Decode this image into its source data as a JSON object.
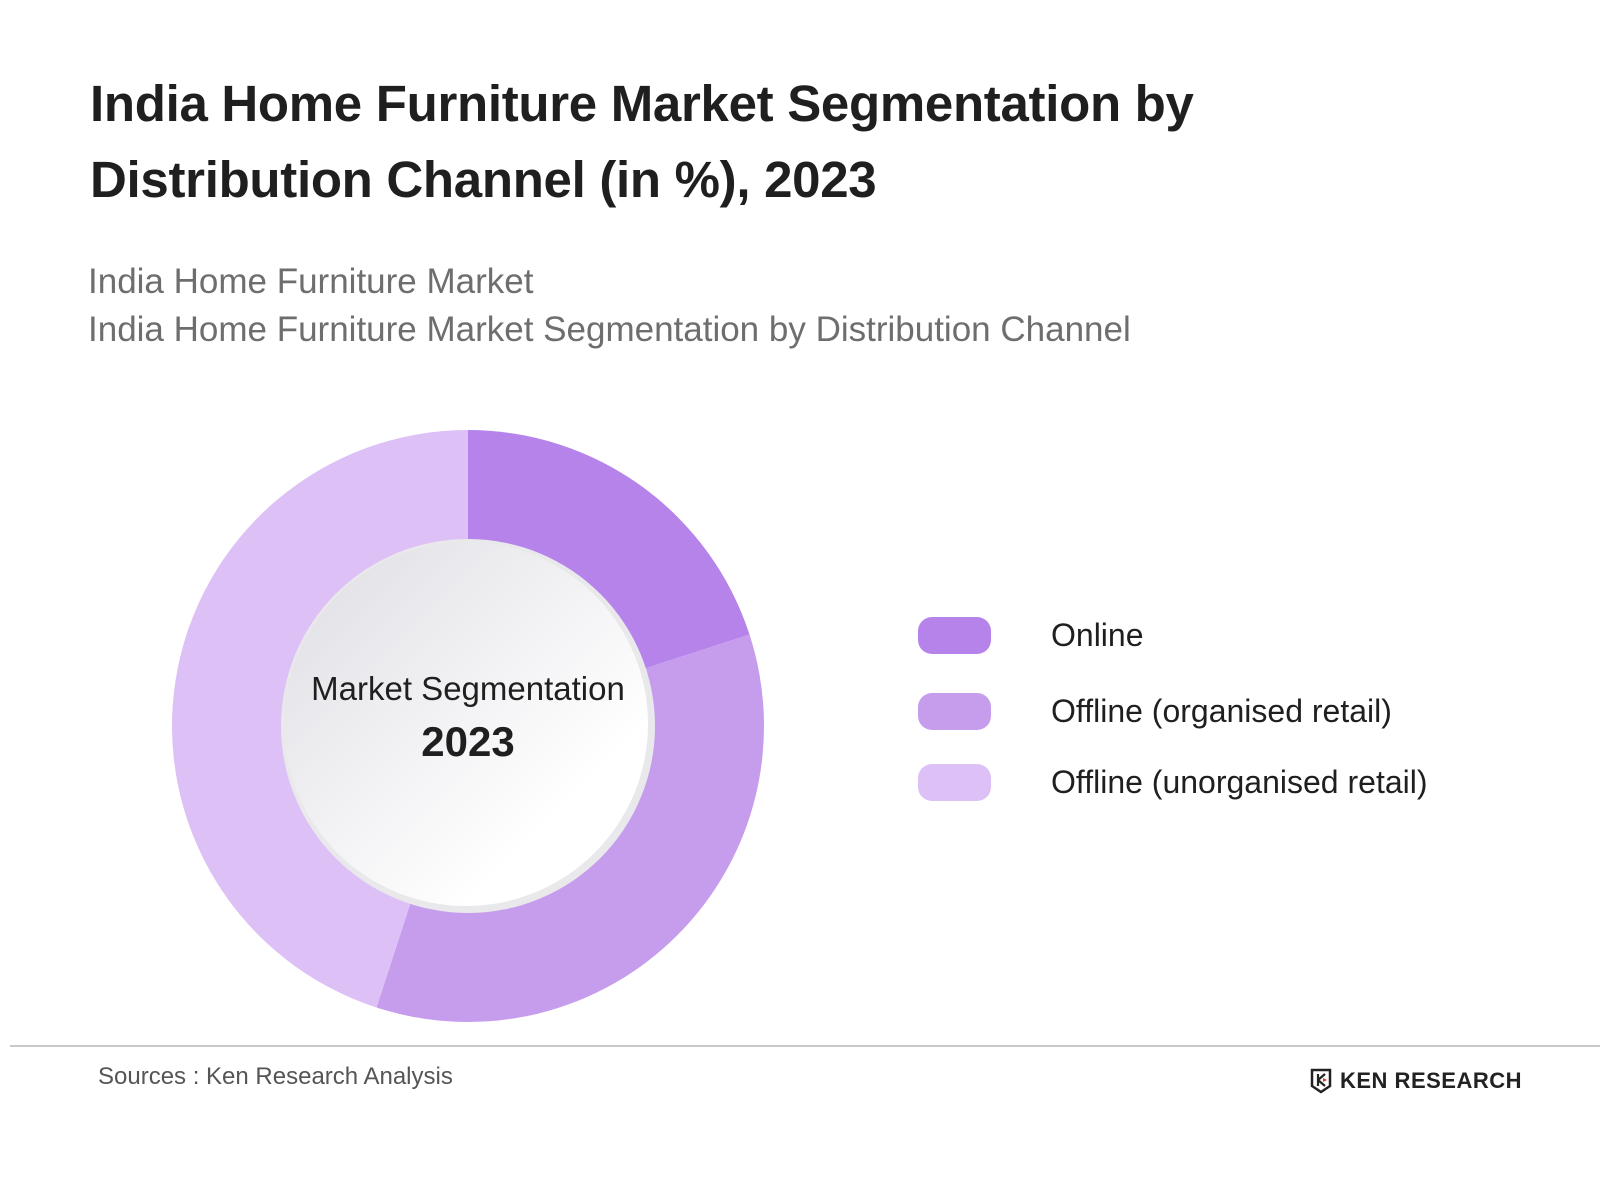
{
  "header": {
    "title": "India Home Furniture Market Segmentation by Distribution Channel (in %), 2023",
    "subtitle_line1": "India Home Furniture Market",
    "subtitle_line2": "India Home Furniture Market Segmentation by Distribution Channel"
  },
  "center": {
    "label": "Market Segmentation",
    "year": "2023"
  },
  "legend": [
    {
      "label": "Online",
      "color": "#b683ea"
    },
    {
      "label": "Offline (organised retail)",
      "color": "#c69ded"
    },
    {
      "label": "Offline (unorganised retail)",
      "color": "#ddc1f6"
    }
  ],
  "footer": {
    "source": "Sources : Ken Research Analysis",
    "logo_text": "KEN RESEARCH"
  },
  "chart_data": {
    "type": "pie",
    "subtype": "donut",
    "title": "India Home Furniture Market Segmentation by Distribution Channel (in %), 2023",
    "subtitle": "India Home Furniture Market / India Home Furniture Market Segmentation by Distribution Channel",
    "center_text": "Market Segmentation 2023",
    "categories": [
      "Online",
      "Offline (organised retail)",
      "Offline (unorganised retail)"
    ],
    "values": [
      20,
      35,
      45
    ],
    "unit": "%",
    "colors": [
      "#b683ea",
      "#c69ded",
      "#ddc1f6"
    ],
    "legend_position": "right",
    "source": "Ken Research Analysis"
  }
}
